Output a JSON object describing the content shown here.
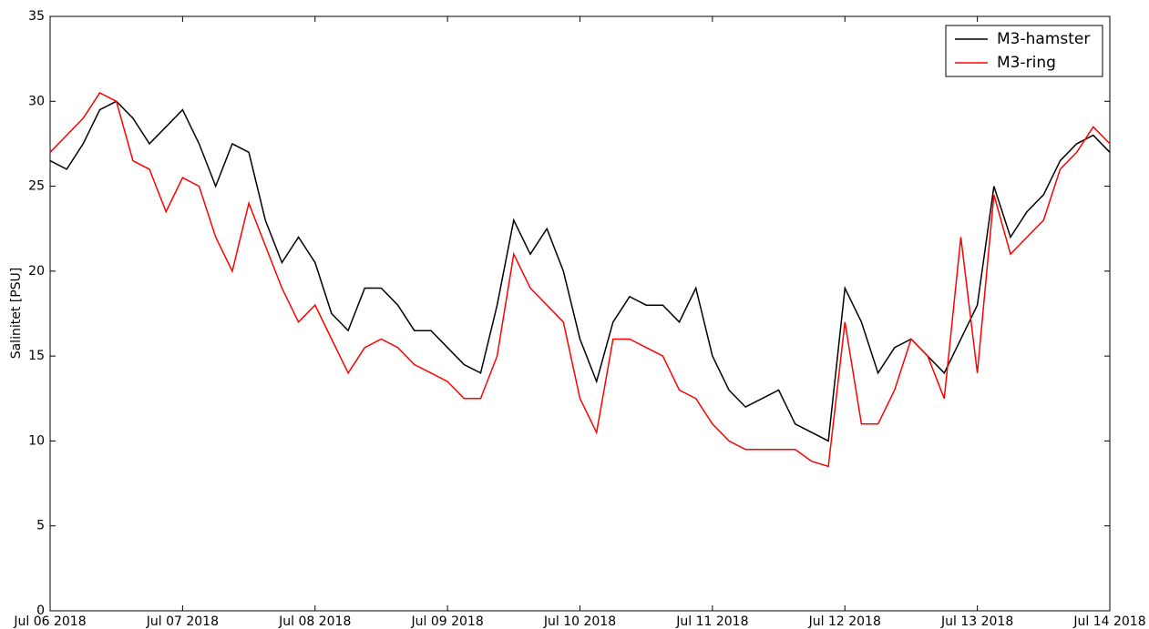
{
  "chart_data": {
    "type": "line",
    "y_label": "Salinitet [PSU]",
    "x": [
      0,
      0.125,
      0.25,
      0.375,
      0.5,
      0.625,
      0.75,
      0.875,
      1,
      1.125,
      1.25,
      1.375,
      1.5,
      1.625,
      1.75,
      1.875,
      2,
      2.125,
      2.25,
      2.375,
      2.5,
      2.625,
      2.75,
      2.875,
      3,
      3.125,
      3.25,
      3.375,
      3.5,
      3.625,
      3.75,
      3.875,
      4,
      4.125,
      4.25,
      4.375,
      4.5,
      4.625,
      4.75,
      4.875,
      5,
      5.125,
      5.25,
      5.375,
      5.5,
      5.625,
      5.75,
      5.875,
      6,
      6.125,
      6.25,
      6.375,
      6.5,
      6.625,
      6.75,
      6.875,
      7,
      7.125,
      7.25,
      7.375,
      7.5,
      7.625,
      7.75,
      7.875,
      8
    ],
    "series": [
      {
        "name": "M3-hamster",
        "color": "#000000",
        "values": [
          26.5,
          26,
          27.5,
          29.5,
          30,
          29,
          27.5,
          28.5,
          29.5,
          27.5,
          25,
          27.5,
          27,
          23,
          20.5,
          22,
          20.5,
          17.5,
          16.5,
          19,
          19,
          18,
          16.5,
          16.5,
          15.5,
          14.5,
          14,
          18,
          23,
          21,
          22.5,
          20,
          16,
          13.5,
          17,
          18.5,
          18,
          18,
          17,
          19,
          15,
          13,
          12,
          12.5,
          13,
          11,
          10.5,
          10,
          19,
          17,
          14,
          15.5,
          16,
          15,
          14,
          16,
          18,
          25,
          22,
          23.5,
          24.5,
          26.5,
          27.5,
          28,
          27
        ]
      },
      {
        "name": "M3-ring",
        "color": "#ff0000",
        "values": [
          27,
          28,
          29,
          30.5,
          30,
          26.5,
          26,
          23.5,
          25.5,
          25,
          22,
          20,
          24,
          21.5,
          19,
          17,
          18,
          16,
          14,
          15.5,
          16,
          15.5,
          14.5,
          14,
          13.5,
          12.5,
          12.5,
          15,
          21,
          19,
          18,
          17,
          12.5,
          10.5,
          16,
          16,
          15.5,
          15,
          13,
          12.5,
          11,
          10,
          9.5,
          9.5,
          9.5,
          9.5,
          8.8,
          8.5,
          17,
          11,
          11,
          13,
          16,
          15,
          12.5,
          22,
          14,
          24.5,
          21,
          22,
          23,
          26,
          27,
          28.5,
          27.5
        ]
      }
    ],
    "xlim": [
      0,
      8
    ],
    "xticks": [
      {
        "value": 0,
        "label": "Jul 06 2018"
      },
      {
        "value": 1,
        "label": "Jul 07 2018"
      },
      {
        "value": 2,
        "label": "Jul 08 2018"
      },
      {
        "value": 3,
        "label": "Jul 09 2018"
      },
      {
        "value": 4,
        "label": "Jul 10 2018"
      },
      {
        "value": 5,
        "label": "Jul 11 2018"
      },
      {
        "value": 6,
        "label": "Jul 12 2018"
      },
      {
        "value": 7,
        "label": "Jul 13 2018"
      },
      {
        "value": 8,
        "label": "Jul 14 2018"
      }
    ],
    "ylim": [
      0,
      35
    ],
    "yticks": [
      0,
      5,
      10,
      15,
      20,
      25,
      30,
      35
    ],
    "legend": "upper right"
  }
}
